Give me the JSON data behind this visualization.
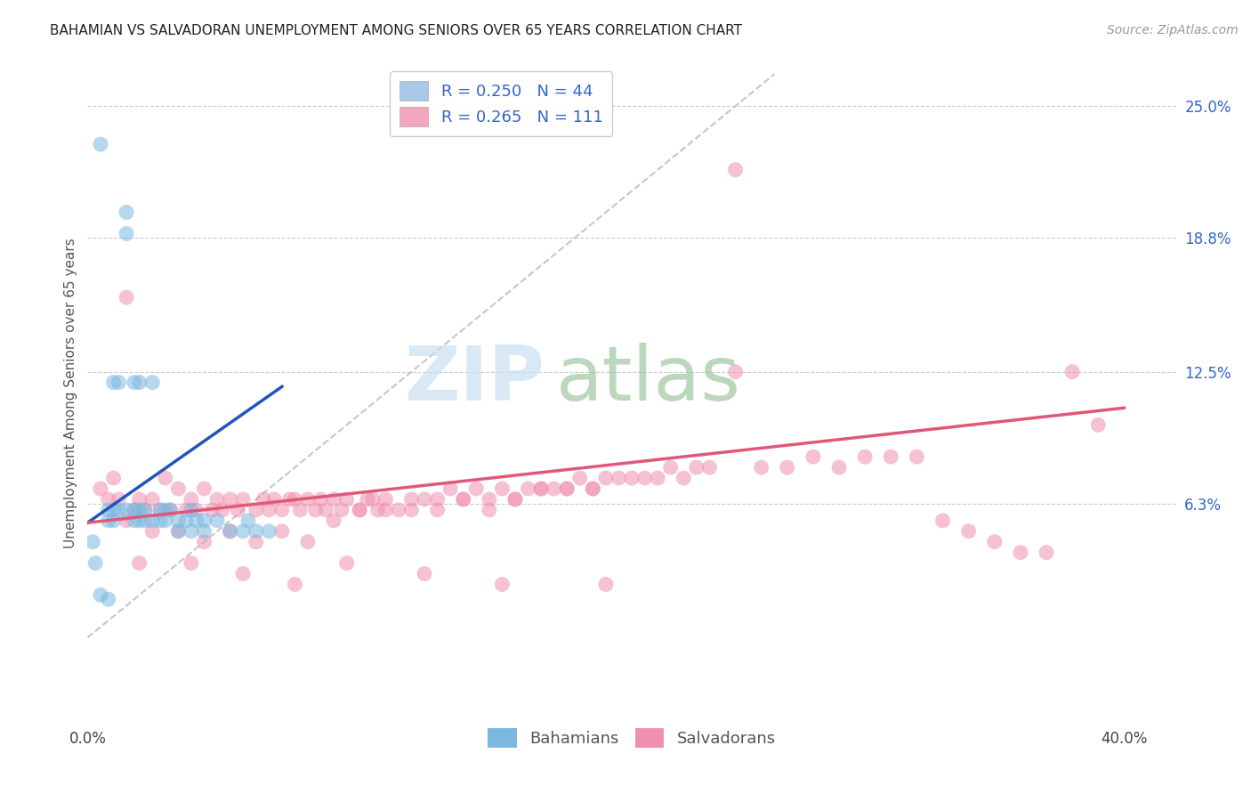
{
  "title": "BAHAMIAN VS SALVADORAN UNEMPLOYMENT AMONG SENIORS OVER 65 YEARS CORRELATION CHART",
  "source": "Source: ZipAtlas.com",
  "ylabel": "Unemployment Among Seniors over 65 years",
  "xlim": [
    0.0,
    0.42
  ],
  "ylim": [
    -0.04,
    0.27
  ],
  "yticks_right": [
    0.063,
    0.125,
    0.188,
    0.25
  ],
  "ytick_right_labels": [
    "6.3%",
    "12.5%",
    "18.8%",
    "25.0%"
  ],
  "legend_R_entries": [
    {
      "label": "R = 0.250   N = 44",
      "color": "#a8c8e8"
    },
    {
      "label": "R = 0.265   N = 111",
      "color": "#f4a8c0"
    }
  ],
  "watermark_zip": "ZIP",
  "watermark_atlas": "atlas",
  "watermark_color_zip": "#c8dff0",
  "watermark_color_atlas": "#a0c8a0",
  "background_color": "#ffffff",
  "grid_color": "#cccccc",
  "bahamian_color": "#7ab8e0",
  "salvadoran_color": "#f090b0",
  "blue_line_color": "#2255bb",
  "pink_line_color": "#e05878",
  "diag_line_color": "#c0c8d0",
  "bahamians_x": [
    0.005,
    0.008,
    0.008,
    0.01,
    0.01,
    0.01,
    0.012,
    0.012,
    0.015,
    0.015,
    0.015,
    0.018,
    0.018,
    0.018,
    0.02,
    0.02,
    0.02,
    0.022,
    0.022,
    0.025,
    0.025,
    0.028,
    0.028,
    0.03,
    0.03,
    0.032,
    0.035,
    0.035,
    0.038,
    0.04,
    0.04,
    0.042,
    0.045,
    0.045,
    0.05,
    0.055,
    0.06,
    0.062,
    0.065,
    0.07,
    0.002,
    0.003,
    0.005,
    0.008
  ],
  "bahamians_y": [
    0.232,
    0.06,
    0.055,
    0.12,
    0.06,
    0.055,
    0.12,
    0.06,
    0.19,
    0.2,
    0.06,
    0.12,
    0.06,
    0.055,
    0.12,
    0.06,
    0.055,
    0.06,
    0.055,
    0.12,
    0.055,
    0.06,
    0.055,
    0.06,
    0.055,
    0.06,
    0.055,
    0.05,
    0.055,
    0.06,
    0.05,
    0.055,
    0.055,
    0.05,
    0.055,
    0.05,
    0.05,
    0.055,
    0.05,
    0.05,
    0.045,
    0.035,
    0.02,
    0.018
  ],
  "salvadorans_x": [
    0.005,
    0.008,
    0.01,
    0.012,
    0.015,
    0.018,
    0.02,
    0.022,
    0.025,
    0.028,
    0.03,
    0.032,
    0.035,
    0.038,
    0.04,
    0.042,
    0.045,
    0.048,
    0.05,
    0.052,
    0.055,
    0.058,
    0.06,
    0.065,
    0.068,
    0.07,
    0.072,
    0.075,
    0.078,
    0.08,
    0.082,
    0.085,
    0.088,
    0.09,
    0.092,
    0.095,
    0.098,
    0.1,
    0.105,
    0.108,
    0.11,
    0.112,
    0.115,
    0.12,
    0.125,
    0.13,
    0.135,
    0.14,
    0.145,
    0.15,
    0.155,
    0.16,
    0.165,
    0.17,
    0.175,
    0.18,
    0.185,
    0.19,
    0.195,
    0.2,
    0.21,
    0.22,
    0.23,
    0.24,
    0.25,
    0.26,
    0.27,
    0.28,
    0.29,
    0.3,
    0.015,
    0.025,
    0.035,
    0.045,
    0.055,
    0.065,
    0.075,
    0.085,
    0.095,
    0.105,
    0.115,
    0.125,
    0.135,
    0.145,
    0.155,
    0.165,
    0.175,
    0.185,
    0.195,
    0.205,
    0.215,
    0.225,
    0.235,
    0.31,
    0.32,
    0.33,
    0.34,
    0.35,
    0.36,
    0.37,
    0.02,
    0.04,
    0.06,
    0.08,
    0.1,
    0.13,
    0.16,
    0.2,
    0.38,
    0.39,
    0.25
  ],
  "salvadorans_y": [
    0.07,
    0.065,
    0.075,
    0.065,
    0.16,
    0.06,
    0.065,
    0.06,
    0.065,
    0.06,
    0.075,
    0.06,
    0.07,
    0.06,
    0.065,
    0.06,
    0.07,
    0.06,
    0.065,
    0.06,
    0.065,
    0.06,
    0.065,
    0.06,
    0.065,
    0.06,
    0.065,
    0.06,
    0.065,
    0.065,
    0.06,
    0.065,
    0.06,
    0.065,
    0.06,
    0.065,
    0.06,
    0.065,
    0.06,
    0.065,
    0.065,
    0.06,
    0.065,
    0.06,
    0.065,
    0.065,
    0.065,
    0.07,
    0.065,
    0.07,
    0.065,
    0.07,
    0.065,
    0.07,
    0.07,
    0.07,
    0.07,
    0.075,
    0.07,
    0.075,
    0.075,
    0.075,
    0.075,
    0.08,
    0.125,
    0.08,
    0.08,
    0.085,
    0.08,
    0.085,
    0.055,
    0.05,
    0.05,
    0.045,
    0.05,
    0.045,
    0.05,
    0.045,
    0.055,
    0.06,
    0.06,
    0.06,
    0.06,
    0.065,
    0.06,
    0.065,
    0.07,
    0.07,
    0.07,
    0.075,
    0.075,
    0.08,
    0.08,
    0.085,
    0.085,
    0.055,
    0.05,
    0.045,
    0.04,
    0.04,
    0.035,
    0.035,
    0.03,
    0.025,
    0.035,
    0.03,
    0.025,
    0.025,
    0.125,
    0.1,
    0.22
  ],
  "blue_line_x": [
    0.0,
    0.075
  ],
  "blue_line_y": [
    0.054,
    0.118
  ],
  "pink_line_x": [
    0.0,
    0.4
  ],
  "pink_line_y": [
    0.054,
    0.108
  ],
  "diag_line_x": [
    0.0,
    0.265
  ],
  "diag_line_y": [
    0.0,
    0.265
  ]
}
